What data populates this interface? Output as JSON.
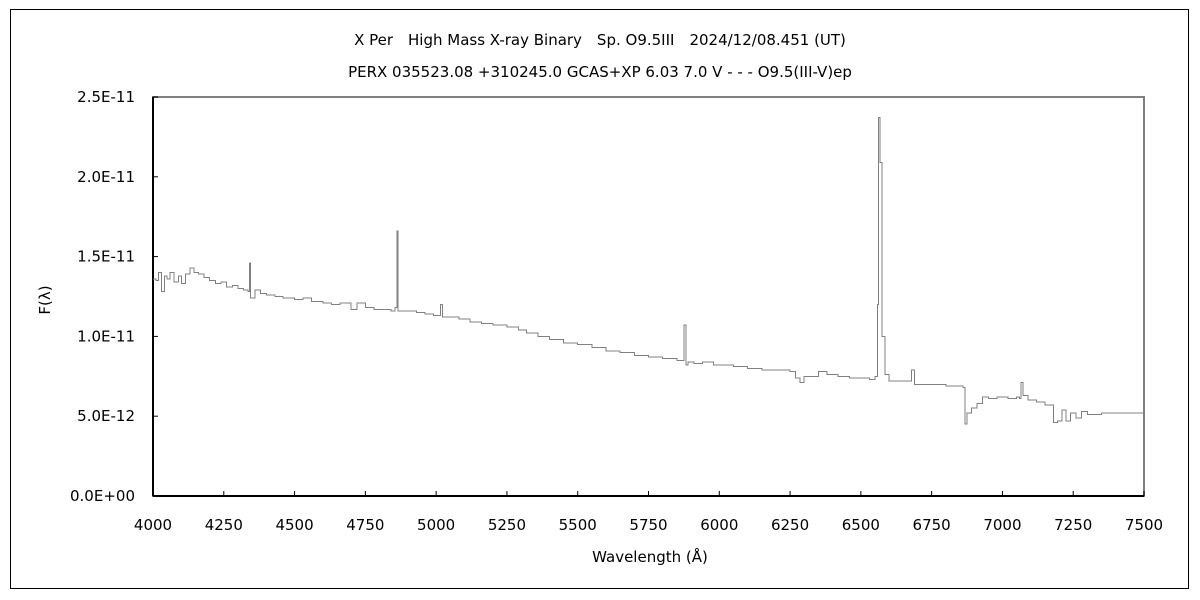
{
  "chart_data": {
    "type": "line",
    "title": "X Per　High Mass X-ray Binary　Sp. O9.5III　2024/12/08.451 (UT)",
    "subtitle": "PERX 035523.08 +310245.0 GCAS+XP 6.03 7.0 V - - - O9.5(III-V)ep",
    "xlabel": "Wavelength (Å)",
    "ylabel": "F(λ)",
    "xlim": [
      4000,
      7500
    ],
    "ylim": [
      0,
      2.5e-11
    ],
    "x_ticks": [
      "4000",
      "4250",
      "4500",
      "4750",
      "5000",
      "5250",
      "5500",
      "5750",
      "6000",
      "6250",
      "6500",
      "6750",
      "7000",
      "7250",
      "7500"
    ],
    "y_ticks": [
      "0.0E+00",
      "5.0E-12",
      "1.0E-11",
      "1.5E-11",
      "2.0E-11",
      "2.5E-11"
    ],
    "grid": false,
    "legend": "none",
    "line_color": "#808080",
    "series": [
      {
        "x": [
          4000,
          4010,
          4020,
          4030,
          4040,
          4050,
          4060,
          4075,
          4090,
          4100,
          4115,
          4130,
          4145,
          4160,
          4180,
          4200,
          4220,
          4240,
          4260,
          4280,
          4300,
          4320,
          4335,
          4340,
          4345,
          4360,
          4380,
          4400,
          4430,
          4460,
          4500,
          4530,
          4560,
          4600,
          4630,
          4660,
          4700,
          4720,
          4750,
          4780,
          4810,
          4840,
          4855,
          4861,
          4866,
          4875,
          4900,
          4930,
          4960,
          4990,
          5010,
          5016,
          5022,
          5040,
          5080,
          5120,
          5160,
          5200,
          5250,
          5290,
          5320,
          5360,
          5400,
          5450,
          5500,
          5550,
          5600,
          5650,
          5700,
          5750,
          5800,
          5850,
          5870,
          5876,
          5882,
          5890,
          5910,
          5940,
          5980,
          6000,
          6050,
          6100,
          6150,
          6200,
          6250,
          6270,
          6285,
          6300,
          6330,
          6350,
          6380,
          6420,
          6460,
          6500,
          6530,
          6550,
          6558,
          6563,
          6568,
          6575,
          6585,
          6600,
          6640,
          6670,
          6678,
          6690,
          6720,
          6760,
          6800,
          6840,
          6860,
          6868,
          6875,
          6890,
          6910,
          6930,
          6950,
          6980,
          7020,
          7050,
          7060,
          7066,
          7072,
          7090,
          7120,
          7150,
          7170,
          7180,
          7195,
          7210,
          7225,
          7240,
          7260,
          7280,
          7300,
          7350,
          7400,
          7450,
          7500
        ],
        "y": [
          1.36e-11,
          1.35e-11,
          1.4e-11,
          1.28e-11,
          1.38e-11,
          1.36e-11,
          1.4e-11,
          1.34e-11,
          1.38e-11,
          1.33e-11,
          1.39e-11,
          1.43e-11,
          1.4e-11,
          1.39e-11,
          1.37e-11,
          1.35e-11,
          1.33e-11,
          1.34e-11,
          1.31e-11,
          1.32e-11,
          1.3e-11,
          1.29e-11,
          1.28e-11,
          1.46e-11,
          1.24e-11,
          1.29e-11,
          1.27e-11,
          1.26e-11,
          1.25e-11,
          1.24e-11,
          1.23e-11,
          1.24e-11,
          1.22e-11,
          1.21e-11,
          1.2e-11,
          1.21e-11,
          1.17e-11,
          1.21e-11,
          1.18e-11,
          1.17e-11,
          1.17e-11,
          1.16e-11,
          1.18e-11,
          1.66e-11,
          1.16e-11,
          1.16e-11,
          1.16e-11,
          1.15e-11,
          1.14e-11,
          1.13e-11,
          1.13e-11,
          1.2e-11,
          1.12e-11,
          1.12e-11,
          1.11e-11,
          1.09e-11,
          1.08e-11,
          1.07e-11,
          1.06e-11,
          1.04e-11,
          1.02e-11,
          1e-11,
          9.8e-12,
          9.6e-12,
          9.5e-12,
          9.3e-12,
          9.1e-12,
          9e-12,
          8.8e-12,
          8.7e-12,
          8.6e-12,
          8.5e-12,
          8.5e-12,
          1.07e-11,
          8.2e-12,
          8.4e-12,
          8.3e-12,
          8.4e-12,
          8.2e-12,
          8.2e-12,
          8.1e-12,
          8e-12,
          7.9e-12,
          7.9e-12,
          7.8e-12,
          7.4e-12,
          7.1e-12,
          7.5e-12,
          7.5e-12,
          7.8e-12,
          7.6e-12,
          7.5e-12,
          7.4e-12,
          7.4e-12,
          7.3e-12,
          7.5e-12,
          1.2e-11,
          2.37e-11,
          2.09e-11,
          1e-11,
          7.6e-12,
          7.2e-12,
          7.2e-12,
          7.2e-12,
          7.9e-12,
          7e-12,
          7e-12,
          7e-12,
          6.9e-12,
          6.9e-12,
          6.8e-12,
          4.5e-12,
          5.2e-12,
          5.5e-12,
          5.8e-12,
          6.2e-12,
          6.1e-12,
          6.2e-12,
          6.1e-12,
          6.2e-12,
          6.1e-12,
          7.1e-12,
          6.3e-12,
          6e-12,
          5.9e-12,
          5.7e-12,
          5.7e-12,
          4.6e-12,
          4.7e-12,
          5.4e-12,
          4.7e-12,
          5.2e-12,
          4.9e-12,
          5.3e-12,
          5.1e-12,
          5.2e-12,
          5.2e-12,
          5.2e-12,
          5.1e-12
        ]
      }
    ]
  }
}
